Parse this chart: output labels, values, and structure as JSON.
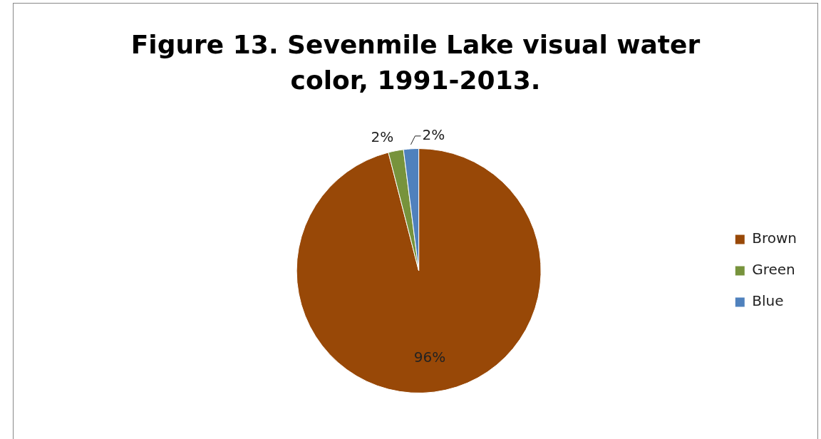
{
  "chart_data": {
    "type": "pie",
    "title": "Figure 13. Sevenmile Lake visual water color, 1991-2013.",
    "categories": [
      "Brown",
      "Green",
      "Blue"
    ],
    "values": [
      96,
      2,
      2
    ],
    "colors": [
      "#984807",
      "#77933c",
      "#4f81bd"
    ],
    "value_labels": [
      "96%",
      "2%",
      "2%"
    ],
    "legend": "right"
  }
}
